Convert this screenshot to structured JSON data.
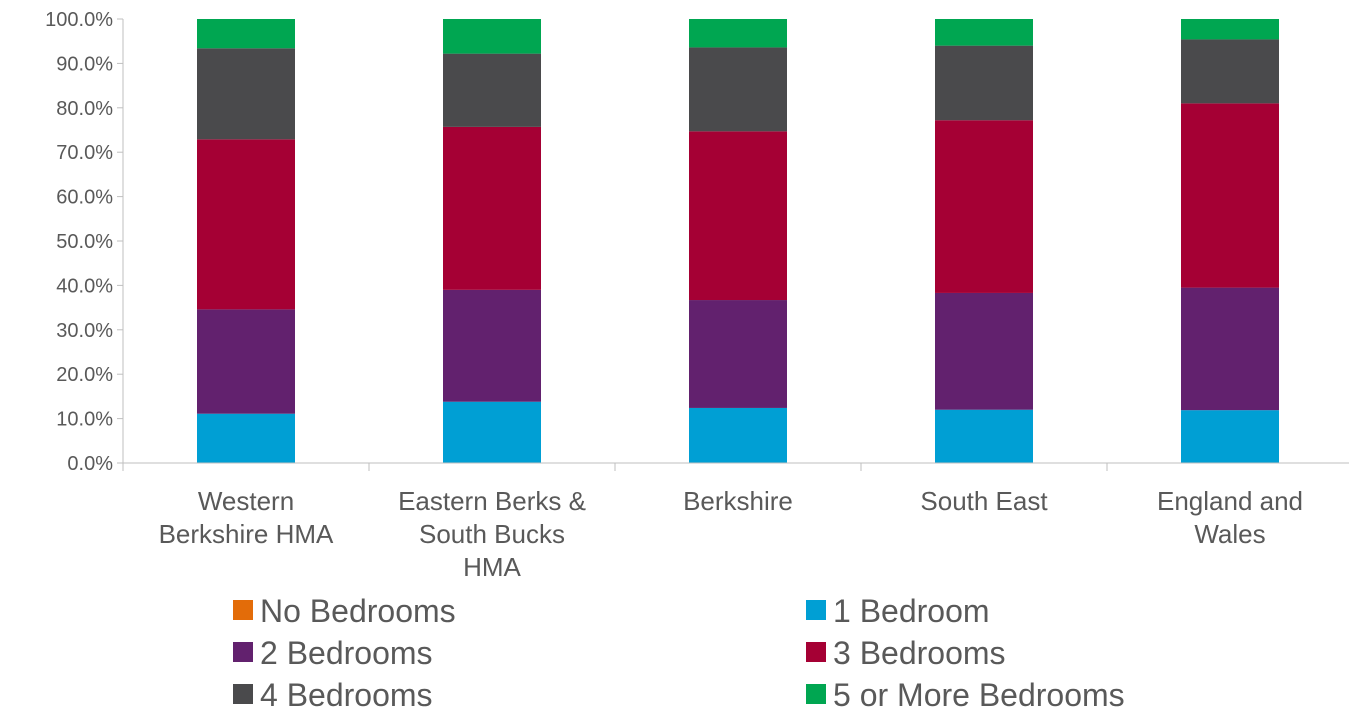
{
  "chart_data": {
    "type": "bar",
    "stacked": true,
    "title": "",
    "xlabel": "",
    "ylabel": "",
    "ylim": [
      0,
      100
    ],
    "y_ticks": [
      "0.0%",
      "10.0%",
      "20.0%",
      "30.0%",
      "40.0%",
      "50.0%",
      "60.0%",
      "70.0%",
      "80.0%",
      "90.0%",
      "100.0%"
    ],
    "categories": [
      [
        "Western",
        "Berkshire HMA"
      ],
      [
        "Eastern Berks &",
        "South Bucks",
        "HMA"
      ],
      [
        "Berkshire"
      ],
      [
        "South East"
      ],
      [
        "England and",
        "Wales"
      ]
    ],
    "series": [
      {
        "name": "No Bedrooms",
        "color": "#E36C09",
        "values": [
          0.1,
          0.1,
          0.1,
          0.1,
          0.1
        ]
      },
      {
        "name": "1 Bedroom",
        "color": "#009FD4",
        "values": [
          11.0,
          13.7,
          12.3,
          11.9,
          11.8
        ]
      },
      {
        "name": "2 Bedrooms",
        "color": "#62216E",
        "values": [
          23.5,
          25.2,
          24.3,
          26.3,
          27.6
        ]
      },
      {
        "name": "3 Bedrooms",
        "color": "#A50034",
        "values": [
          38.3,
          36.7,
          38.0,
          38.9,
          41.5
        ]
      },
      {
        "name": "4 Bedrooms",
        "color": "#4A4A4C",
        "values": [
          20.5,
          16.5,
          18.9,
          16.8,
          14.4
        ]
      },
      {
        "name": "5 or More Bedrooms",
        "color": "#00A651",
        "values": [
          6.6,
          7.8,
          6.4,
          6.0,
          4.6
        ]
      }
    ],
    "grid": false,
    "legend_position": "bottom"
  }
}
